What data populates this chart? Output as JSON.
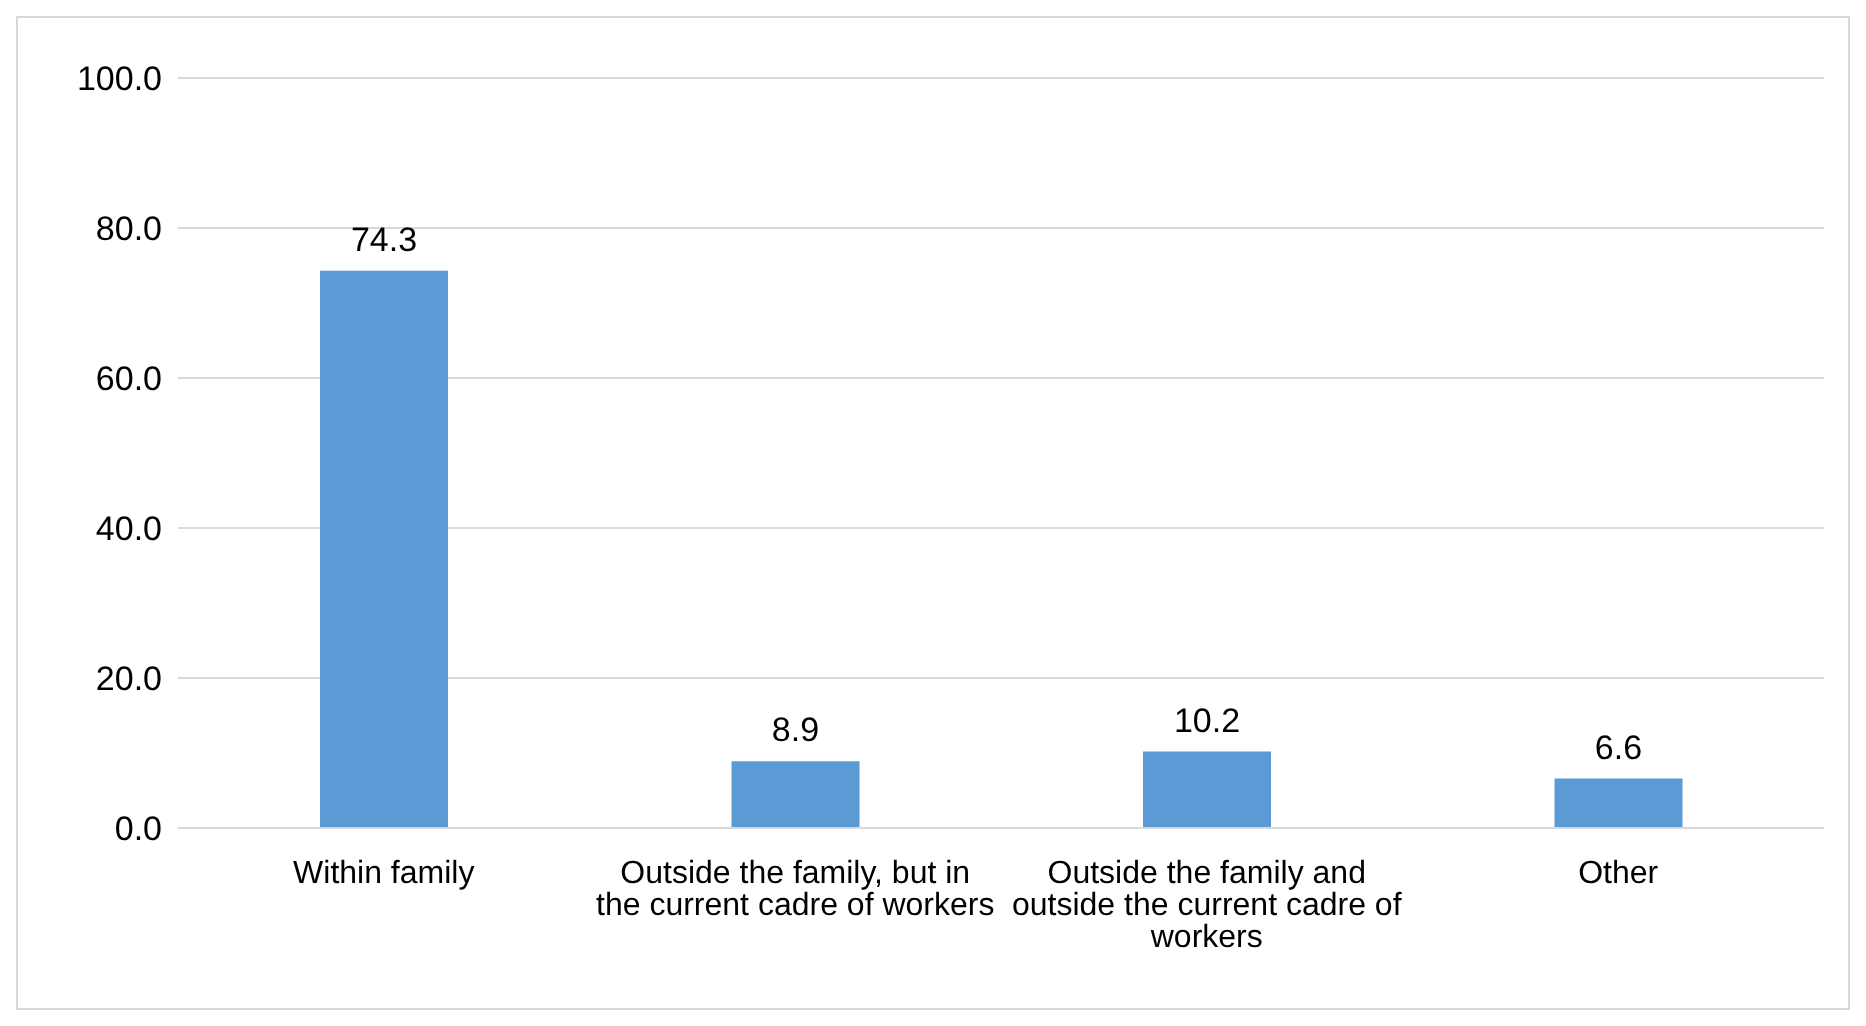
{
  "chart_data": {
    "type": "bar",
    "categories": [
      "Within family",
      "Outside the family, but in the current cadre of workers",
      "Outside the family and outside the current cadre of workers",
      "Other"
    ],
    "values": [
      74.3,
      8.9,
      10.2,
      6.6
    ],
    "color": "#5b9bd5",
    "ylim": [
      0,
      100
    ],
    "yticks": [
      {
        "value": 0,
        "label": "0.0"
      },
      {
        "value": 20,
        "label": "20.0"
      },
      {
        "value": 40,
        "label": "40.0"
      },
      {
        "value": 60,
        "label": "60.0"
      },
      {
        "value": 80,
        "label": "80.0"
      },
      {
        "value": 100,
        "label": "100.0"
      }
    ],
    "grid": "y",
    "data_labels": true,
    "legend": false
  }
}
